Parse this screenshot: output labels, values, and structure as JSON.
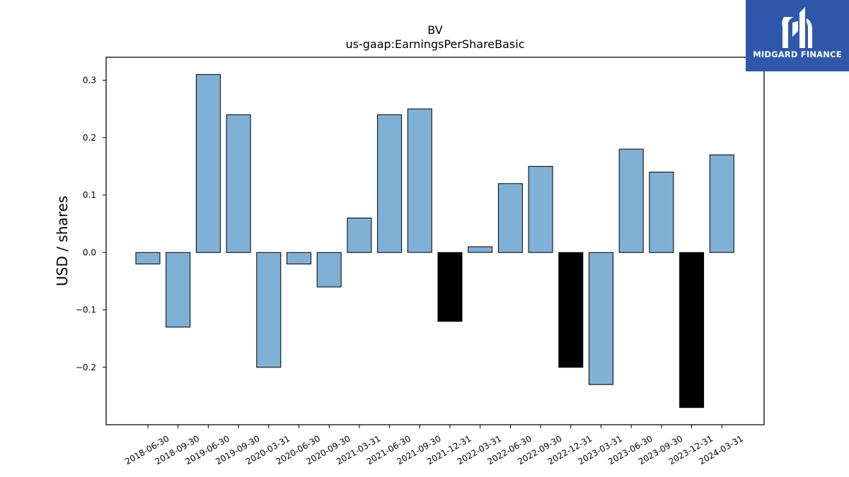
{
  "chart_data": {
    "type": "bar",
    "title": "BV",
    "subtitle": "us-gaap:EarningsPerShareBasic",
    "xlabel": "",
    "ylabel": "USD / shares",
    "ylim": [
      -0.3,
      0.34
    ],
    "yticks": [
      -0.2,
      -0.1,
      0.0,
      0.1,
      0.2,
      0.3
    ],
    "ytick_labels": [
      "−0.2",
      "−0.1",
      "0.0",
      "0.1",
      "0.2",
      "0.3"
    ],
    "grid": false,
    "categories": [
      "2018-06-30",
      "2018-09-30",
      "2019-06-30",
      "2019-09-30",
      "2020-03-31",
      "2020-06-30",
      "2020-09-30",
      "2021-03-31",
      "2021-06-30",
      "2021-09-30",
      "2021-12-31",
      "2022-03-31",
      "2022-06-30",
      "2022-09-30",
      "2022-12-31",
      "2023-03-31",
      "2023-06-30",
      "2023-09-30",
      "2023-12-31",
      "2024-03-31"
    ],
    "values": [
      -0.02,
      -0.13,
      0.31,
      0.24,
      -0.2,
      -0.02,
      -0.06,
      0.06,
      0.24,
      0.25,
      -0.12,
      0.01,
      0.12,
      0.15,
      -0.2,
      -0.23,
      0.18,
      0.14,
      -0.27,
      0.17
    ],
    "bar_colors": [
      "#7fb0d5",
      "#7fb0d5",
      "#7fb0d5",
      "#7fb0d5",
      "#7fb0d5",
      "#7fb0d5",
      "#7fb0d5",
      "#7fb0d5",
      "#7fb0d5",
      "#7fb0d5",
      "#000000",
      "#7fb0d5",
      "#7fb0d5",
      "#7fb0d5",
      "#000000",
      "#7fb0d5",
      "#7fb0d5",
      "#7fb0d5",
      "#000000",
      "#7fb0d5"
    ]
  },
  "colors": {
    "bar": "#7fb0d5",
    "highlight_bar": "#000000",
    "logo_bg": "#2f58ab"
  },
  "logo": {
    "text": "MIDGARD FINANCE",
    "icon": "midgard-logo-icon"
  }
}
